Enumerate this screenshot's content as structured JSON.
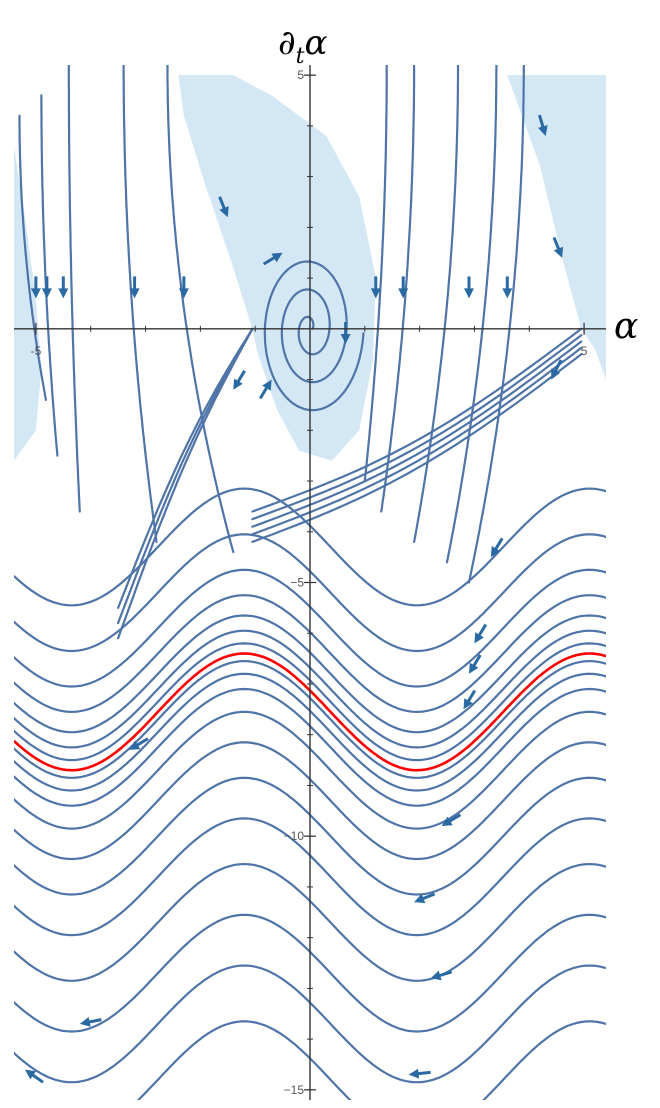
{
  "chart_data": {
    "type": "streamplot",
    "title": "",
    "xlabel": "α",
    "ylabel": "∂ₜα",
    "xlabel_parts": {
      "base": "α"
    },
    "ylabel_parts": {
      "base": "∂",
      "sub": "t",
      "tail": "α"
    },
    "xlim": [
      -5.4,
      5.4
    ],
    "ylim": [
      -15.2,
      5.2
    ],
    "x_ticks": [
      {
        "value": -5,
        "label": "-5"
      },
      {
        "value": 5,
        "label": "5"
      }
    ],
    "y_ticks": [
      {
        "value": 5,
        "label": "5"
      },
      {
        "value": -5,
        "label": "−5"
      },
      {
        "value": -10,
        "label": "−10"
      },
      {
        "value": -15,
        "label": "−15"
      }
    ],
    "equilibria": [
      {
        "x": 0,
        "y": 0,
        "kind": "stable focus"
      },
      {
        "x": -1.05,
        "y": 0,
        "kind": "saddle"
      },
      {
        "x": 4.95,
        "y": 0,
        "kind": "saddle"
      }
    ],
    "basin_regions": [
      {
        "name": "basin-left-edge",
        "points": [
          [
            -5.4,
            3.6
          ],
          [
            -5.2,
            2.2
          ],
          [
            -5.0,
            0.6
          ],
          [
            -4.9,
            -0.8
          ],
          [
            -5.0,
            -2.0
          ],
          [
            -5.4,
            -2.6
          ]
        ]
      },
      {
        "name": "basin-center",
        "points": [
          [
            -2.4,
            5.0
          ],
          [
            -1.4,
            5.0
          ],
          [
            -0.7,
            4.6
          ],
          [
            0.3,
            3.8
          ],
          [
            0.9,
            2.6
          ],
          [
            1.2,
            1.0
          ],
          [
            1.15,
            -0.6
          ],
          [
            0.9,
            -2.0
          ],
          [
            0.4,
            -2.6
          ],
          [
            -0.2,
            -2.4
          ],
          [
            -0.6,
            -1.6
          ],
          [
            -0.95,
            -0.5
          ],
          [
            -1.05,
            0.0
          ],
          [
            -1.4,
            1.2
          ],
          [
            -1.9,
            2.8
          ],
          [
            -2.3,
            4.2
          ]
        ]
      },
      {
        "name": "basin-right",
        "points": [
          [
            3.6,
            5.0
          ],
          [
            5.4,
            5.0
          ],
          [
            5.4,
            -1.0
          ],
          [
            5.2,
            -0.4
          ],
          [
            4.95,
            0.0
          ],
          [
            4.6,
            1.4
          ],
          [
            4.2,
            3.2
          ]
        ]
      }
    ],
    "highlight_curve": {
      "name": "",
      "color": "#ff0000",
      "offset": -7.55,
      "amplitude": 1.15,
      "x_range": [
        -5.4,
        5.4
      ]
    },
    "colors": {
      "stream": "#4f74a8",
      "arrow": "#2a6aa3",
      "basin": "#d4e7f5",
      "axis": "#333333",
      "highlight": "#ff0000"
    }
  }
}
